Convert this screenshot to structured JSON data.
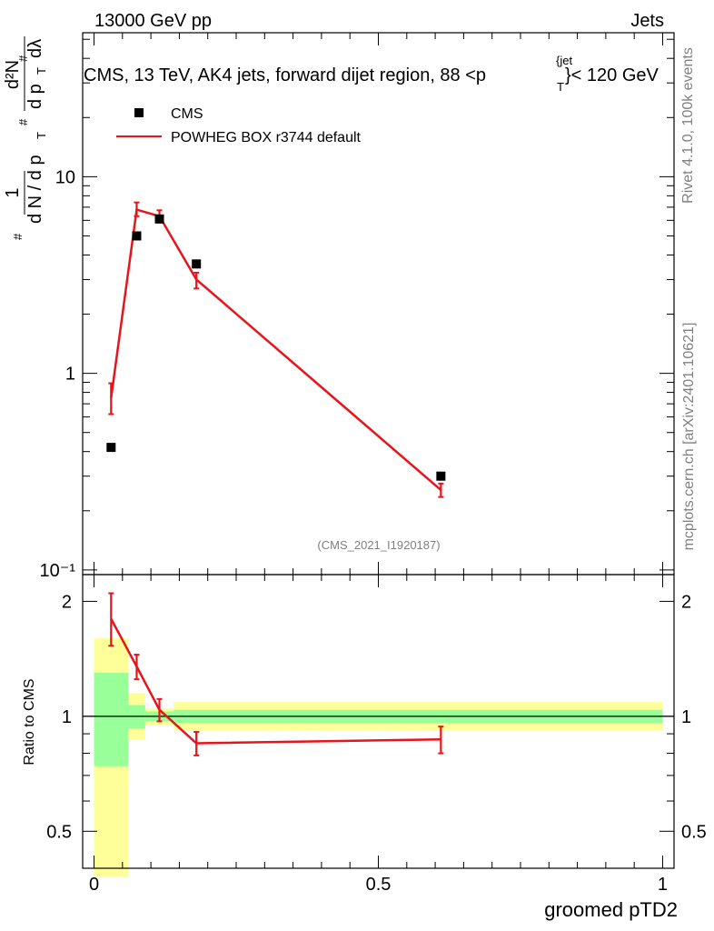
{
  "header": {
    "left": "13000 GeV pp",
    "right": "Jets"
  },
  "side": {
    "rivet": "Rivet 4.1.0,  100k events",
    "mcplots": "mcplots.cern.ch [arXiv:2401.10621]"
  },
  "watermark": "(CMS_2021_I1920187)",
  "title": {
    "main": "CMS, 13 TeV, AK4 jets, forward dijet region, 88 <p",
    "sub": "T",
    "sup": "{jet",
    "tail": "}< 120 GeV"
  },
  "ylabel_main": {
    "hash1": "#",
    "one": "1",
    "denom": "d N / d p",
    "T1": "T",
    "hash2": "#",
    "d2N": "d²N",
    "dpT": "d p",
    "T2": "T",
    "hash3": "#",
    "dlambda": "dλ"
  },
  "legend": [
    {
      "label": "CMS",
      "marker": "square",
      "color": "#000000"
    },
    {
      "label": "POWHEG BOX r3744 default",
      "marker": "line",
      "color": "#e8141b"
    }
  ],
  "x_tick_labels": [
    "0",
    "0.5",
    "1"
  ],
  "main_y_tick_labels": [
    "10⁻¹",
    "1",
    "10"
  ],
  "ratio_y_tick_labels": [
    "0.5",
    "1",
    "2"
  ],
  "ratio_ylabel": "Ratio to CMS",
  "xlabel": "groomed pTD2",
  "colors": {
    "mc": "#e8141b",
    "data": "#000000",
    "band_outer": "#ffff99",
    "band_inner": "#99ff99"
  },
  "chart_data": [
    {
      "type": "scatter",
      "panel": "main",
      "yscale": "log",
      "xlim": [
        -0.02,
        1.02
      ],
      "ylim": [
        0.0947,
        54
      ],
      "x_bins": [
        [
          0.0,
          0.06
        ],
        [
          0.06,
          0.09
        ],
        [
          0.09,
          0.14
        ],
        [
          0.14,
          0.22
        ],
        [
          0.22,
          1.0
        ]
      ],
      "series": [
        {
          "name": "CMS",
          "x": [
            0.03,
            0.075,
            0.115,
            0.18,
            0.61
          ],
          "values": [
            0.42,
            5.0,
            6.1,
            3.6,
            0.3
          ]
        },
        {
          "name": "POWHEG BOX r3744 default",
          "x": [
            0.03,
            0.075,
            0.115,
            0.18,
            0.61
          ],
          "values": [
            0.75,
            6.8,
            6.3,
            3.0,
            0.255
          ],
          "err_low": [
            0.13,
            0.5,
            0.45,
            0.3,
            0.02
          ],
          "err_high": [
            0.14,
            0.6,
            0.45,
            0.25,
            0.02
          ]
        }
      ]
    },
    {
      "type": "line",
      "panel": "ratio",
      "ylabel": "Ratio to CMS",
      "xlabel": "groomed pTD2",
      "xlim": [
        -0.02,
        1.02
      ],
      "ylim": [
        0.4,
        2.35
      ],
      "yscale": "log",
      "reference_line": 1,
      "series": [
        {
          "name": "POWHEG BOX r3744 default",
          "x": [
            0.03,
            0.075,
            0.115,
            0.18,
            0.61
          ],
          "values": [
            1.8,
            1.35,
            1.04,
            0.85,
            0.87
          ],
          "err_low": [
            0.27,
            0.1,
            0.07,
            0.06,
            0.07
          ],
          "err_high": [
            0.3,
            0.1,
            0.07,
            0.06,
            0.07
          ]
        }
      ],
      "uncertainty_bands": [
        {
          "x_range": [
            0.0,
            0.06
          ],
          "outer": [
            0.38,
            1.6
          ],
          "inner": [
            0.74,
            1.3
          ]
        },
        {
          "x_range": [
            0.06,
            0.09
          ],
          "outer": [
            0.87,
            1.15
          ],
          "inner": [
            0.93,
            1.07
          ]
        },
        {
          "x_range": [
            0.09,
            0.14
          ],
          "outer": [
            0.95,
            1.05
          ],
          "inner": [
            0.97,
            1.03
          ]
        },
        {
          "x_range": [
            0.14,
            1.0
          ],
          "outer": [
            0.92,
            1.09
          ],
          "inner": [
            0.96,
            1.04
          ]
        }
      ]
    }
  ]
}
